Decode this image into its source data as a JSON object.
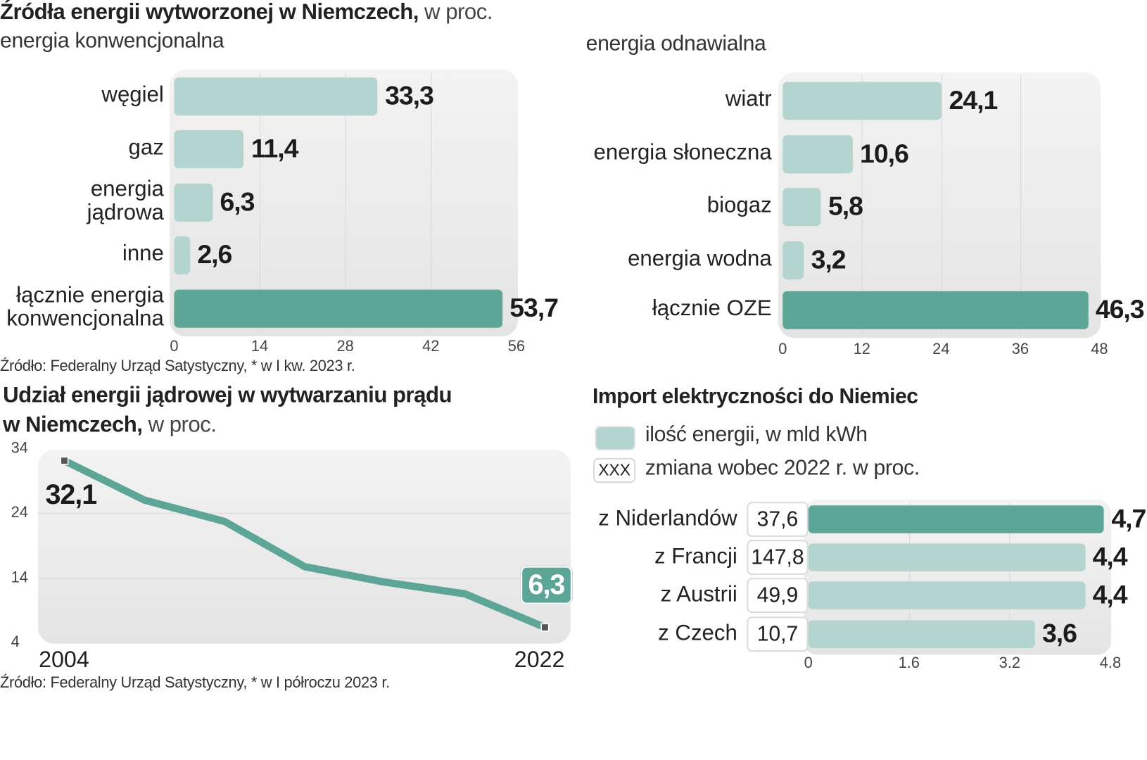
{
  "colors": {
    "bar_light": "#b3d4cf",
    "bar_dark": "#5da596",
    "line": "#5da596",
    "marker": "#555555",
    "text": "#222222"
  },
  "header": {
    "title_bold": "Źródła energii wytworzonej w Niemczech,",
    "title_light": " w proc.",
    "left_subtitle": "energia konwencjonalna",
    "right_subtitle": "energia odnawialna"
  },
  "source1": "Źródło: Federalny Urząd Satystyczny, * w I kw. 2023 r.",
  "nuclear_title": {
    "line1": "Udział energii jądrowej w wytwarzaniu prądu",
    "line2_bold": "w Niemczech,",
    "line2_light": " w proc."
  },
  "source2": "Źródło: Federalny Urząd Satystyczny, * w I półroczu 2023 r.",
  "import_title": "Import elektryczności do Niemiec",
  "import_legend": {
    "swatch_label": "ilość energii, w mld kWh",
    "box_sample": "XXX",
    "box_label": "zmiana wobec 2022 r. w proc."
  },
  "chart_data": [
    {
      "type": "bar",
      "orientation": "horizontal",
      "title": "energia konwencjonalna",
      "categories": [
        "węgiel",
        "gaz",
        "energia jądrowa",
        "inne",
        "łącznie energia konwencjonalna"
      ],
      "category_lines": [
        [
          "węgiel"
        ],
        [
          "gaz"
        ],
        [
          "energia",
          "jądrowa"
        ],
        [
          "inne"
        ],
        [
          "łącznie energia",
          "konwencjonalna"
        ]
      ],
      "values": [
        33.3,
        11.4,
        6.3,
        2.6,
        53.7
      ],
      "value_labels": [
        "33,3",
        "11,4",
        "6,3",
        "2,6",
        "53,7"
      ],
      "highlight": [
        false,
        false,
        false,
        false,
        true
      ],
      "xlim": [
        0,
        56
      ],
      "xticks": [
        0,
        14,
        28,
        42,
        56
      ],
      "unit": "%",
      "grid": true
    },
    {
      "type": "bar",
      "orientation": "horizontal",
      "title": "energia odnawialna",
      "categories": [
        "wiatr",
        "energia słoneczna",
        "biogaz",
        "energia wodna",
        "łącznie OZE"
      ],
      "values": [
        24.1,
        10.6,
        5.8,
        3.2,
        46.3
      ],
      "value_labels": [
        "24,1",
        "10,6",
        "5,8",
        "3,2",
        "46,3"
      ],
      "highlight": [
        false,
        false,
        false,
        false,
        true
      ],
      "xlim": [
        0,
        48
      ],
      "xticks": [
        0,
        12,
        24,
        36,
        48
      ],
      "unit": "%",
      "grid": true
    },
    {
      "type": "line",
      "title": "Udział energii jądrowej w wytwarzaniu prądu w Niemczech, w proc.",
      "x": [
        2004,
        2007,
        2010,
        2013,
        2016,
        2019,
        2022
      ],
      "x_labels_shown": [
        "2004",
        "2022"
      ],
      "values": [
        32.1,
        26.0,
        22.7,
        15.7,
        13.3,
        11.5,
        6.3
      ],
      "annotations": [
        {
          "x": 2004,
          "label": "32,1"
        },
        {
          "x": 2022,
          "label": "6,3"
        }
      ],
      "ylim": [
        4,
        34
      ],
      "yticks": [
        4,
        14,
        24,
        34
      ],
      "grid": true
    },
    {
      "type": "bar",
      "orientation": "horizontal",
      "title": "Import elektryczności do Niemiec",
      "categories": [
        "z Niderlandów",
        "z Francji",
        "z Austrii",
        "z Czech"
      ],
      "values": [
        4.7,
        4.4,
        4.4,
        3.6
      ],
      "value_labels": [
        "4,7",
        "4,4",
        "4,4",
        "3,6"
      ],
      "change_pct": [
        "37,6",
        "147,8",
        "49,9",
        "10,7"
      ],
      "highlight": [
        true,
        false,
        false,
        false
      ],
      "xlim": [
        0,
        4.8
      ],
      "xticks": [
        "0",
        "1.6",
        "3.2",
        "4.8"
      ],
      "legend": [
        "ilość energii, w mld kWh",
        "zmiana wobec 2022 r. w proc."
      ],
      "grid": true
    }
  ]
}
